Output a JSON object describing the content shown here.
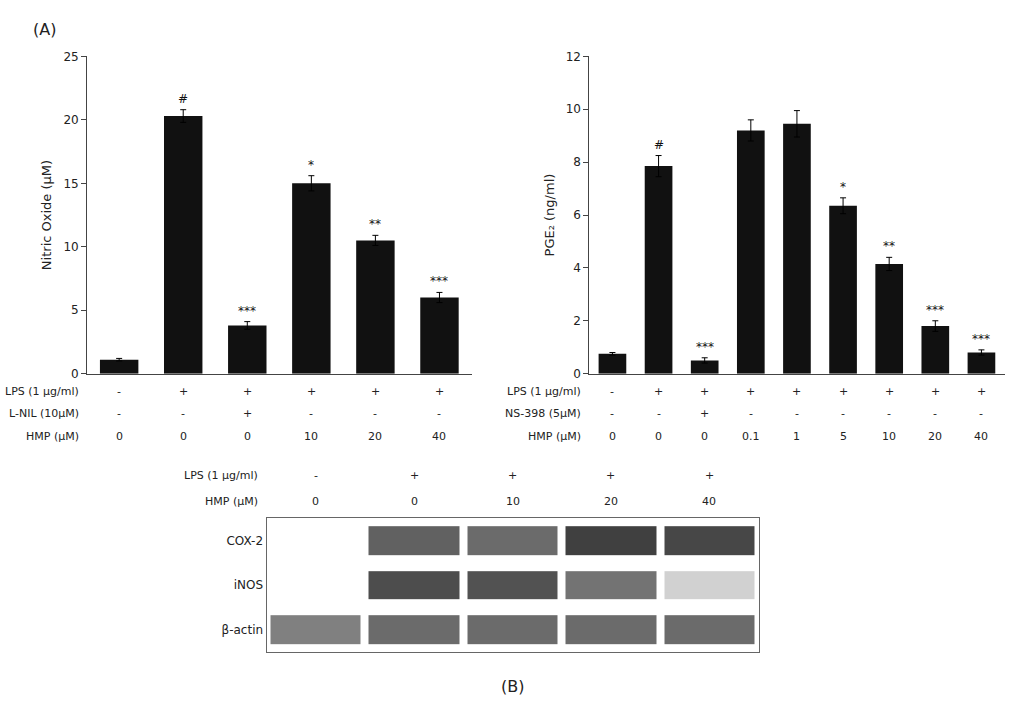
{
  "chart_data": [
    {
      "type": "bar",
      "title": "(A)",
      "ylabel": "Nitric Oxide (μM)",
      "values": [
        1.1,
        20.3,
        3.8,
        15.0,
        10.5,
        6.0
      ],
      "errors": [
        0.1,
        0.5,
        0.3,
        0.6,
        0.4,
        0.4
      ],
      "annotations": [
        null,
        "#",
        "***",
        "*",
        "**",
        "***"
      ],
      "color": "#111111",
      "ylim": [
        0,
        25
      ],
      "yticks": [
        0,
        5,
        10,
        15,
        20,
        25
      ],
      "grid": false,
      "tick_labels": "y",
      "table": [
        {
          "label": "LPS (1 μg/ml)",
          "values": [
            "-",
            "+",
            "+",
            "+",
            "+",
            "+"
          ]
        },
        {
          "label": "L-NIL (10μM)",
          "values": [
            "-",
            "-",
            "+",
            "-",
            "-",
            "-"
          ]
        },
        {
          "label": "HMP (μM)",
          "values": [
            "0",
            "0",
            "0",
            "10",
            "20",
            "40"
          ]
        }
      ]
    },
    {
      "type": "bar",
      "ylabel": "PGE₂ (ng/ml)",
      "values": [
        0.75,
        7.85,
        0.5,
        9.2,
        9.45,
        6.35,
        4.15,
        1.8,
        0.8
      ],
      "errors": [
        0.05,
        0.4,
        0.1,
        0.4,
        0.5,
        0.3,
        0.25,
        0.2,
        0.1
      ],
      "annotations": [
        null,
        "#",
        "***",
        null,
        null,
        "*",
        "**",
        "***",
        "***"
      ],
      "color": "#111111",
      "ylim": [
        0,
        12
      ],
      "yticks": [
        0,
        2,
        4,
        6,
        8,
        10,
        12
      ],
      "grid": false,
      "tick_labels": "y",
      "table": [
        {
          "label": "LPS (1 μg/ml)",
          "values": [
            "-",
            "+",
            "+",
            "+",
            "+",
            "+",
            "+",
            "+",
            "+"
          ]
        },
        {
          "label": "NS-398 (5μM)",
          "values": [
            "-",
            "-",
            "+",
            "-",
            "-",
            "-",
            "-",
            "-",
            "-"
          ]
        },
        {
          "label": "HMP (μM)",
          "values": [
            "0",
            "0",
            "0",
            "0.1",
            "1",
            "5",
            "10",
            "20",
            "40"
          ]
        }
      ]
    },
    {
      "type": "heatmap",
      "title": "(B)",
      "rows": [
        "COX-2",
        "iNOS",
        "β-actin"
      ],
      "cells": [
        [
          0.0,
          0.62,
          0.58,
          0.75,
          0.72
        ],
        [
          0.0,
          0.7,
          0.68,
          0.55,
          0.18
        ],
        [
          0.5,
          0.58,
          0.58,
          0.58,
          0.58
        ]
      ],
      "zlim": [
        0,
        1
      ],
      "tick_labels": "y",
      "table": [
        {
          "label": "LPS (1 μg/ml)",
          "values": [
            "-",
            "+",
            "+",
            "+",
            "+"
          ]
        },
        {
          "label": "HMP (μM)",
          "values": [
            "0",
            "0",
            "10",
            "20",
            "40"
          ]
        }
      ]
    }
  ]
}
